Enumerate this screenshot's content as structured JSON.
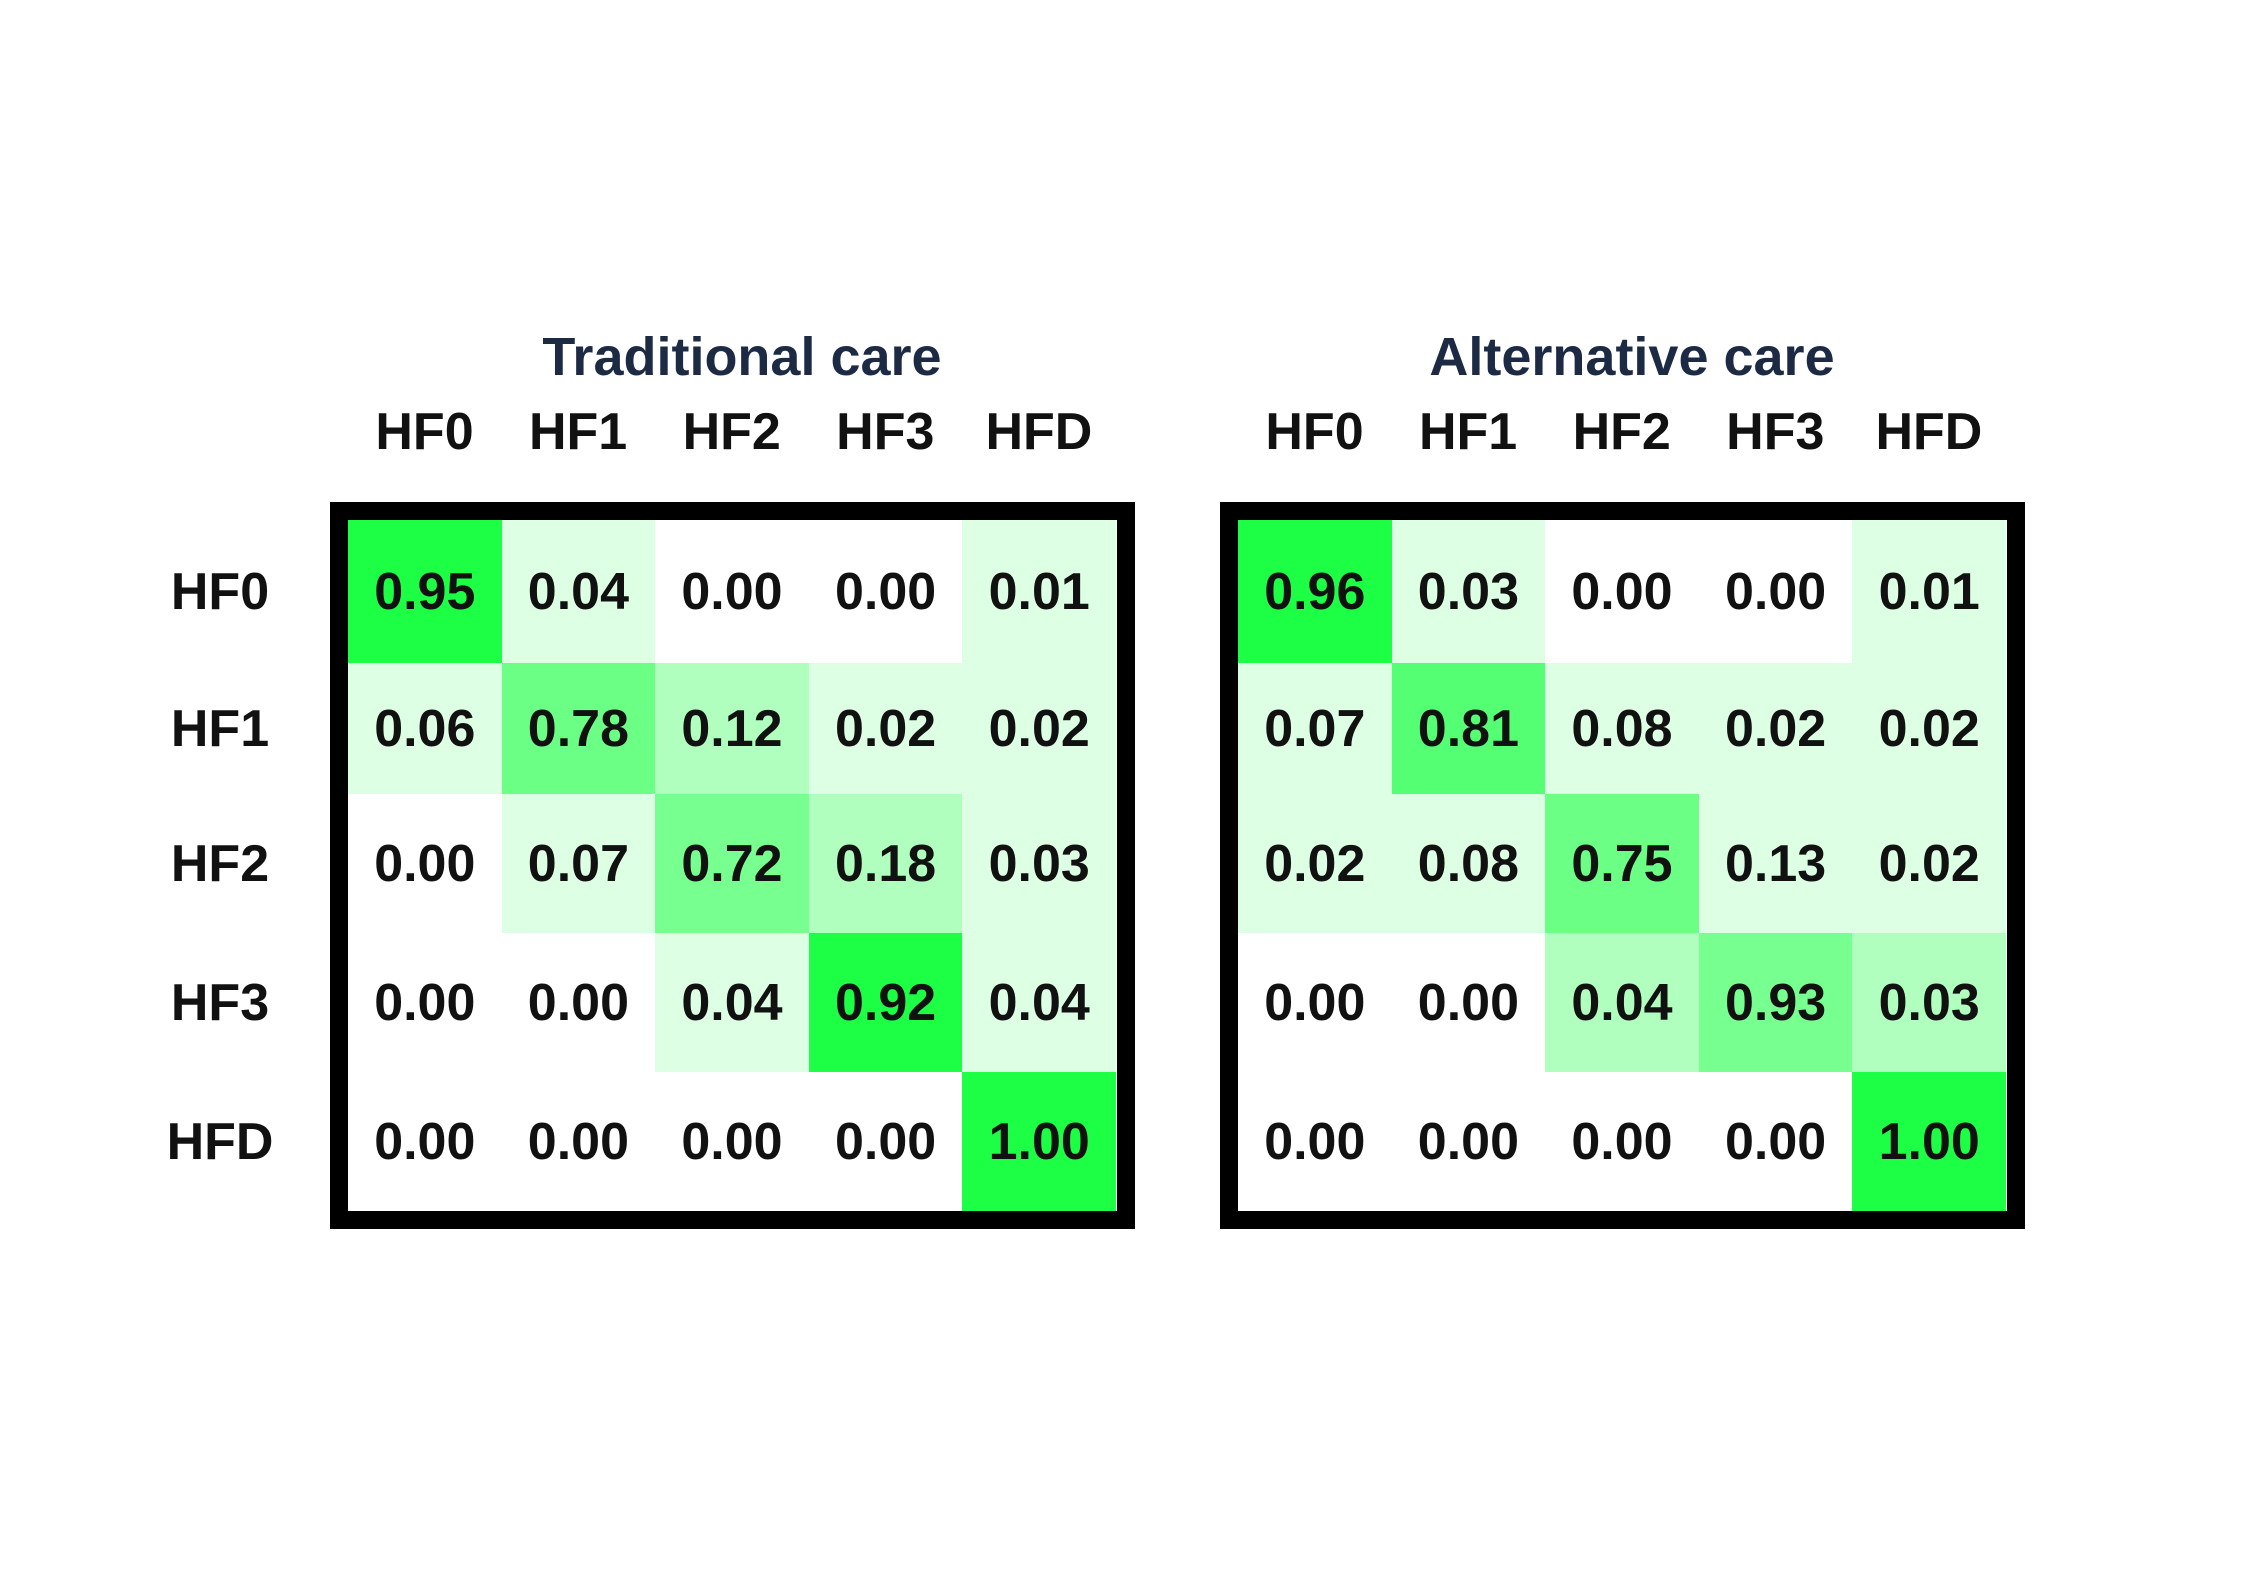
{
  "colors": {
    "low": "#ffffff",
    "high": "#1cff44",
    "frame": "#000000",
    "title": "#1c2a44"
  },
  "chart_data": [
    {
      "type": "heatmap",
      "title": "Traditional care",
      "columns": [
        "HF0",
        "HF1",
        "HF2",
        "HF3",
        "HFD"
      ],
      "rows": [
        "HF0",
        "HF1",
        "HF2",
        "HF3",
        "HFD"
      ],
      "values": [
        [
          0.95,
          0.04,
          0.0,
          0.0,
          0.01
        ],
        [
          0.06,
          0.78,
          0.12,
          0.02,
          0.02
        ],
        [
          0.0,
          0.07,
          0.72,
          0.18,
          0.03
        ],
        [
          0.0,
          0.0,
          0.04,
          0.92,
          0.04
        ],
        [
          0.0,
          0.0,
          0.0,
          0.0,
          1.0
        ]
      ],
      "value_labels": [
        [
          "0.95",
          "0.04",
          "0.00",
          "0.00",
          "0.01"
        ],
        [
          "0.06",
          "0.78",
          "0.12",
          "0.02",
          "0.02"
        ],
        [
          "0.00",
          "0.07",
          "0.72",
          "0.18",
          "0.03"
        ],
        [
          "0.00",
          "0.00",
          "0.04",
          "0.92",
          "0.04"
        ],
        [
          "0.00",
          "0.00",
          "0.00",
          "0.00",
          "1.00"
        ]
      ],
      "cell_level": [
        [
          1.0,
          0.15,
          0.0,
          0.0,
          0.15
        ],
        [
          0.15,
          0.65,
          0.35,
          0.15,
          0.15
        ],
        [
          0.0,
          0.15,
          0.6,
          0.35,
          0.15
        ],
        [
          0.0,
          0.0,
          0.15,
          1.0,
          0.15
        ],
        [
          0.0,
          0.0,
          0.0,
          0.0,
          1.0
        ]
      ]
    },
    {
      "type": "heatmap",
      "title": "Alternative care",
      "columns": [
        "HF0",
        "HF1",
        "HF2",
        "HF3",
        "HFD"
      ],
      "rows": [
        "HF0",
        "HF1",
        "HF2",
        "HF3",
        "HFD"
      ],
      "values": [
        [
          0.96,
          0.03,
          0.0,
          0.0,
          0.01
        ],
        [
          0.07,
          0.81,
          0.08,
          0.02,
          0.02
        ],
        [
          0.02,
          0.08,
          0.75,
          0.13,
          0.02
        ],
        [
          0.0,
          0.0,
          0.04,
          0.93,
          0.03
        ],
        [
          0.0,
          0.0,
          0.0,
          0.0,
          1.0
        ]
      ],
      "value_labels": [
        [
          "0.96",
          "0.03",
          "0.00",
          "0.00",
          "0.01"
        ],
        [
          "0.07",
          "0.81",
          "0.08",
          "0.02",
          "0.02"
        ],
        [
          "0.02",
          "0.08",
          "0.75",
          "0.13",
          "0.02"
        ],
        [
          "0.00",
          "0.00",
          "0.04",
          "0.93",
          "0.03"
        ],
        [
          "0.00",
          "0.00",
          "0.00",
          "0.00",
          "1.00"
        ]
      ],
      "cell_level": [
        [
          1.0,
          0.15,
          0.0,
          0.0,
          0.15
        ],
        [
          0.15,
          0.75,
          0.15,
          0.15,
          0.15
        ],
        [
          0.15,
          0.15,
          0.65,
          0.15,
          0.15
        ],
        [
          0.0,
          0.0,
          0.35,
          0.6,
          0.35
        ],
        [
          0.0,
          0.0,
          0.0,
          0.0,
          1.0
        ]
      ]
    }
  ]
}
